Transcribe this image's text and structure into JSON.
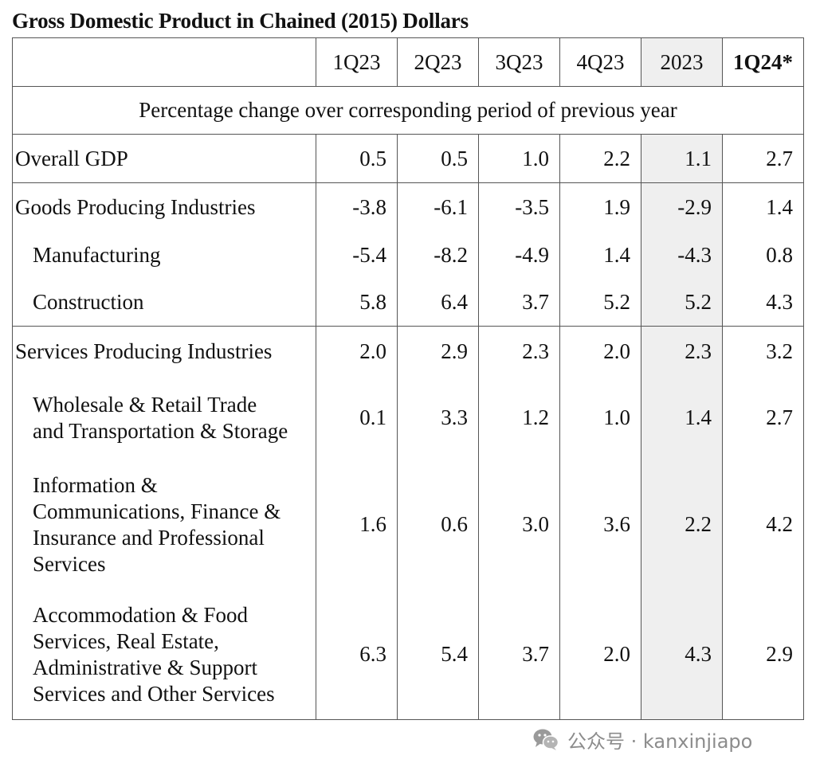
{
  "title": "Gross Domestic Product in Chained (2015) Dollars",
  "table": {
    "columns": [
      "1Q23",
      "2Q23",
      "3Q23",
      "4Q23",
      "2023",
      "1Q24*"
    ],
    "subheader": "Percentage change over corresponding period of previous year",
    "rows": [
      {
        "label": "Overall GDP",
        "values": [
          "0.5",
          "0.5",
          "1.0",
          "2.2",
          "1.1",
          "2.7"
        ]
      },
      {
        "label": "Goods Producing Industries",
        "values": [
          "-3.8",
          "-6.1",
          "-3.5",
          "1.9",
          "-2.9",
          "1.4"
        ]
      },
      {
        "label": "Manufacturing",
        "values": [
          "-5.4",
          "-8.2",
          "-4.9",
          "1.4",
          "-4.3",
          "0.8"
        ]
      },
      {
        "label": "Construction",
        "values": [
          "5.8",
          "6.4",
          "3.7",
          "5.2",
          "5.2",
          "4.3"
        ]
      },
      {
        "label": "Services Producing Industries",
        "values": [
          "2.0",
          "2.9",
          "2.3",
          "2.0",
          "2.3",
          "3.2"
        ]
      },
      {
        "label_lines": [
          "Wholesale & Retail Trade",
          "and Transportation & Storage"
        ],
        "values": [
          "0.1",
          "3.3",
          "1.2",
          "1.0",
          "1.4",
          "2.7"
        ]
      },
      {
        "label_lines": [
          "Information &",
          "Communications, Finance &",
          "Insurance and Professional",
          "Services"
        ],
        "values": [
          "1.6",
          "0.6",
          "3.0",
          "3.6",
          "2.2",
          "4.2"
        ]
      },
      {
        "label_lines": [
          "Accommodation & Food",
          "Services, Real Estate,",
          "Administrative & Support",
          "Services and Other Services"
        ],
        "values": [
          "6.3",
          "5.4",
          "3.7",
          "2.0",
          "4.3",
          "2.9"
        ]
      }
    ]
  },
  "watermark": {
    "text": "公众号 · kanxinjiapo",
    "icon": "wechat-icon"
  },
  "colors": {
    "highlight_column": "#efefef",
    "border": "#555555",
    "watermark": "#8c8c8c"
  }
}
